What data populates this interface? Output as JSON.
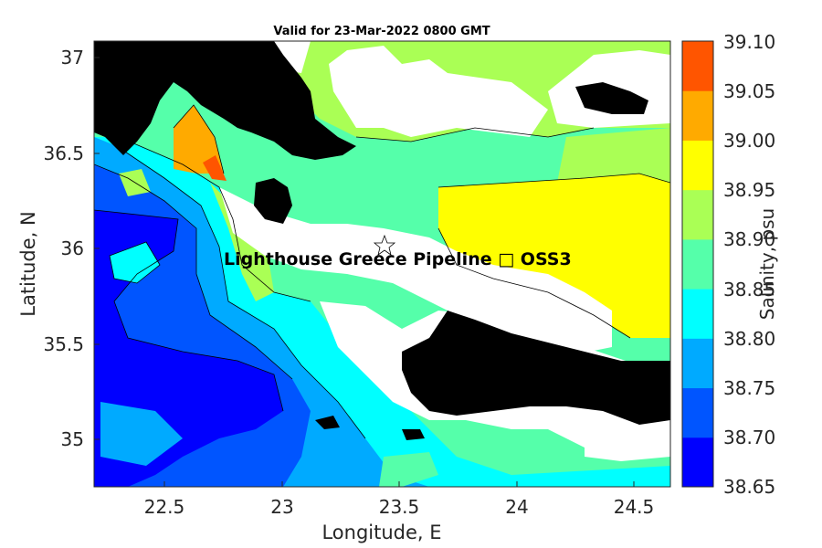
{
  "chart_data": {
    "type": "heatmap",
    "subtype": "filled contour map",
    "title": "Valid for 23-Mar-2022 0800 GMT",
    "xlabel": "Longitude, E",
    "ylabel": "Latitude, N",
    "xlim": [
      22.22,
      24.65
    ],
    "ylim": [
      34.74,
      37.07
    ],
    "xticks": [
      "22.5",
      "23",
      "23.5",
      "24",
      "24.5"
    ],
    "yticks": [
      "35",
      "35.5",
      "36",
      "36.5",
      "37"
    ],
    "colorbar": {
      "label": "Salinity, psu",
      "levels": [
        "38.65",
        "38.70",
        "38.75",
        "38.80",
        "38.85",
        "38.90",
        "38.95",
        "39.00",
        "39.05",
        "39.10"
      ],
      "colors": [
        "#0000ff",
        "#0055ff",
        "#00aaff",
        "#00ffff",
        "#55ffaa",
        "#aaff55",
        "#ffff00",
        "#ffaa00",
        "#ff5500"
      ]
    },
    "marker": {
      "symbol": "star",
      "lon": 23.46,
      "lat": 36.0
    },
    "annotation": "Lighthouse Greece Pipeline □ OSS3",
    "land_color": "#000000",
    "no_data_color": "#ffffff",
    "grid": false
  }
}
